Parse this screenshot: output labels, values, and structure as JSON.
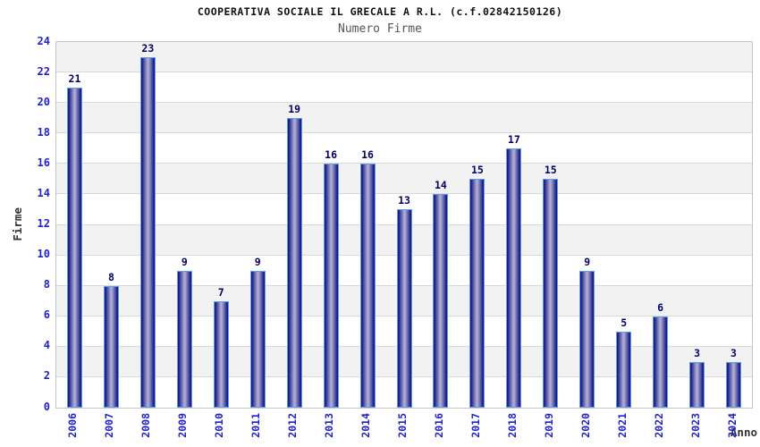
{
  "chart_data": {
    "type": "bar",
    "title": "COOPERATIVA SOCIALE IL GRECALE A R.L. (c.f.02842150126)",
    "subtitle": "Numero Firme",
    "xlabel": "Anno",
    "ylabel": "Firme",
    "categories": [
      "2006",
      "2007",
      "2008",
      "2009",
      "2010",
      "2011",
      "2012",
      "2013",
      "2014",
      "2015",
      "2016",
      "2017",
      "2018",
      "2019",
      "2020",
      "2021",
      "2022",
      "2023",
      "2024"
    ],
    "values": [
      21,
      8,
      23,
      9,
      7,
      9,
      19,
      16,
      16,
      13,
      14,
      15,
      17,
      15,
      9,
      5,
      6,
      3,
      3
    ],
    "ylim": [
      0,
      24
    ],
    "ytick_step": 2,
    "grid": true,
    "legend_position": "none",
    "colors": {
      "tick_label": "#2222cc",
      "value_label": "#000066",
      "bar_edge": "#1b1b84",
      "bar_mid": "#7a7ab8",
      "bar_center": "#b4b4da",
      "bar_outline": "#5c9ef0",
      "band_gray": "#f2f2f2",
      "band_white": "#ffffff",
      "gridline": "#d9d9d9",
      "plot_border": "#c4c4c4",
      "title_color": "#111111",
      "subtitle_color": "#555555",
      "axis_title_color": "#333333"
    }
  }
}
